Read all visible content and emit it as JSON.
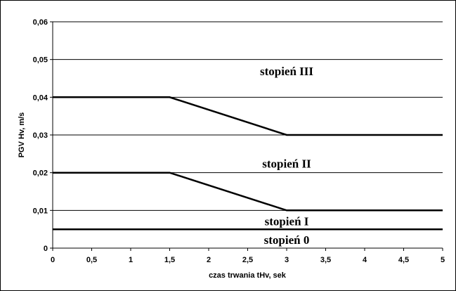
{
  "chart_data": {
    "type": "line",
    "title": "",
    "xlabel": "czas trwania tHv, sek",
    "ylabel": "PGV Hv, m/s",
    "xlim": [
      0,
      5
    ],
    "ylim": [
      0,
      0.06
    ],
    "grid": "horizontal",
    "x_ticks": [
      "0",
      "0,5",
      "1",
      "1,5",
      "2",
      "2,5",
      "3",
      "3,5",
      "4",
      "4,5",
      "5"
    ],
    "y_ticks": [
      "0",
      "0,01",
      "0,02",
      "0,03",
      "0,04",
      "0,05",
      "0,06"
    ],
    "series": [
      {
        "x": [
          0,
          1.5,
          3,
          5
        ],
        "y": [
          0.04,
          0.04,
          0.03,
          0.03
        ]
      },
      {
        "x": [
          0,
          1.5,
          3,
          5
        ],
        "y": [
          0.02,
          0.02,
          0.01,
          0.01
        ]
      },
      {
        "x": [
          0,
          5
        ],
        "y": [
          0.005,
          0.005
        ]
      }
    ],
    "annotations": [
      {
        "text": "stopień III",
        "x": 3,
        "y": 0.047
      },
      {
        "text": "stopień II",
        "x": 3,
        "y": 0.0225
      },
      {
        "text": "stopień I",
        "x": 3,
        "y": 0.0072
      },
      {
        "text": "stopień 0",
        "x": 3,
        "y": 0.0022
      }
    ],
    "colors": {
      "line": "#000000",
      "grid": "#000000",
      "background": "#ffffff"
    }
  }
}
